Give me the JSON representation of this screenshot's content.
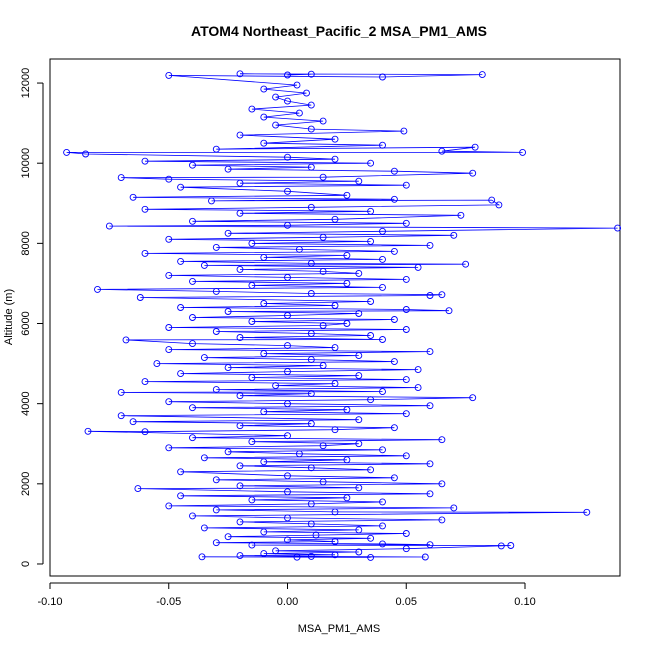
{
  "chart_data": {
    "type": "scatter",
    "title": "ATOM4 Northeast_Pacific_2 MSA_PM1_AMS",
    "xlabel": "MSA_PM1_AMS",
    "ylabel": "Altitude (m)",
    "xlim": [
      -0.1,
      0.14
    ],
    "ylim": [
      -300,
      12600
    ],
    "x_ticks": [
      -0.1,
      -0.05,
      0.0,
      0.05,
      0.1
    ],
    "x_tick_labels": [
      "-0.10",
      "-0.05",
      "0.00",
      "0.05",
      "0.10"
    ],
    "y_ticks": [
      0,
      2000,
      4000,
      6000,
      8000,
      10000,
      12000
    ],
    "y_tick_labels": [
      "0",
      "2000",
      "4000",
      "6000",
      "8000",
      "10000",
      "12000"
    ],
    "grid": false,
    "legend": "none",
    "series": [
      {
        "values": [
          [
            0.004,
            170
          ],
          [
            0.035,
            165
          ],
          [
            -0.036,
            180
          ],
          [
            0.058,
            175
          ],
          [
            0.01,
            190
          ],
          [
            -0.02,
            210
          ],
          [
            0.02,
            230
          ],
          [
            -0.01,
            260
          ],
          [
            0.03,
            300
          ],
          [
            -0.005,
            330
          ],
          [
            0.05,
            380
          ],
          [
            0.09,
            450
          ],
          [
            0.094,
            460
          ],
          [
            -0.015,
            470
          ],
          [
            0.06,
            480
          ],
          [
            0.04,
            500
          ],
          [
            -0.03,
            530
          ],
          [
            0.02,
            560
          ],
          [
            0.0,
            600
          ],
          [
            0.035,
            640
          ],
          [
            -0.025,
            680
          ],
          [
            0.012,
            720
          ],
          [
            0.05,
            760
          ],
          [
            -0.01,
            800
          ],
          [
            0.03,
            850
          ],
          [
            -0.035,
            900
          ],
          [
            0.04,
            950
          ],
          [
            0.01,
            1000
          ],
          [
            -0.02,
            1050
          ],
          [
            0.065,
            1100
          ],
          [
            0.0,
            1150
          ],
          [
            -0.04,
            1200
          ],
          [
            0.126,
            1290
          ],
          [
            0.02,
            1300
          ],
          [
            -0.03,
            1350
          ],
          [
            0.07,
            1400
          ],
          [
            -0.05,
            1450
          ],
          [
            0.01,
            1500
          ],
          [
            0.04,
            1550
          ],
          [
            -0.015,
            1600
          ],
          [
            0.025,
            1650
          ],
          [
            -0.045,
            1700
          ],
          [
            0.06,
            1750
          ],
          [
            0.0,
            1800
          ],
          [
            -0.063,
            1880
          ],
          [
            0.03,
            1900
          ],
          [
            -0.02,
            1950
          ],
          [
            0.065,
            2000
          ],
          [
            0.015,
            2050
          ],
          [
            -0.03,
            2100
          ],
          [
            0.045,
            2150
          ],
          [
            0.0,
            2200
          ],
          [
            -0.045,
            2300
          ],
          [
            0.035,
            2350
          ],
          [
            0.01,
            2400
          ],
          [
            -0.02,
            2450
          ],
          [
            0.06,
            2500
          ],
          [
            -0.01,
            2550
          ],
          [
            0.025,
            2600
          ],
          [
            -0.035,
            2650
          ],
          [
            0.05,
            2700
          ],
          [
            0.005,
            2750
          ],
          [
            -0.025,
            2800
          ],
          [
            0.04,
            2850
          ],
          [
            -0.05,
            2900
          ],
          [
            0.015,
            2950
          ],
          [
            0.03,
            3000
          ],
          [
            -0.015,
            3050
          ],
          [
            0.065,
            3100
          ],
          [
            -0.04,
            3150
          ],
          [
            0.0,
            3200
          ],
          [
            -0.084,
            3310
          ],
          [
            -0.06,
            3300
          ],
          [
            0.02,
            3350
          ],
          [
            0.045,
            3400
          ],
          [
            -0.02,
            3450
          ],
          [
            0.01,
            3500
          ],
          [
            -0.065,
            3550
          ],
          [
            0.03,
            3600
          ],
          [
            -0.07,
            3700
          ],
          [
            0.05,
            3750
          ],
          [
            -0.01,
            3800
          ],
          [
            0.025,
            3850
          ],
          [
            -0.04,
            3900
          ],
          [
            0.06,
            3950
          ],
          [
            0.0,
            4000
          ],
          [
            -0.05,
            4050
          ],
          [
            0.035,
            4100
          ],
          [
            0.078,
            4150
          ],
          [
            -0.02,
            4200
          ],
          [
            0.01,
            4250
          ],
          [
            -0.07,
            4280
          ],
          [
            0.04,
            4300
          ],
          [
            -0.03,
            4350
          ],
          [
            0.055,
            4400
          ],
          [
            -0.005,
            4450
          ],
          [
            0.02,
            4500
          ],
          [
            -0.06,
            4550
          ],
          [
            0.05,
            4600
          ],
          [
            -0.015,
            4650
          ],
          [
            0.03,
            4700
          ],
          [
            -0.045,
            4750
          ],
          [
            0.0,
            4800
          ],
          [
            0.055,
            4850
          ],
          [
            -0.025,
            4900
          ],
          [
            0.015,
            4950
          ],
          [
            -0.055,
            5000
          ],
          [
            0.045,
            5050
          ],
          [
            0.01,
            5100
          ],
          [
            -0.035,
            5150
          ],
          [
            0.03,
            5200
          ],
          [
            -0.01,
            5250
          ],
          [
            0.06,
            5300
          ],
          [
            -0.05,
            5350
          ],
          [
            0.02,
            5400
          ],
          [
            0.0,
            5450
          ],
          [
            -0.04,
            5500
          ],
          [
            -0.068,
            5590
          ],
          [
            0.04,
            5600
          ],
          [
            -0.02,
            5650
          ],
          [
            0.035,
            5700
          ],
          [
            0.01,
            5750
          ],
          [
            -0.03,
            5800
          ],
          [
            0.05,
            5850
          ],
          [
            -0.05,
            5900
          ],
          [
            0.015,
            5950
          ],
          [
            0.025,
            6000
          ],
          [
            -0.015,
            6050
          ],
          [
            0.045,
            6100
          ],
          [
            -0.04,
            6150
          ],
          [
            0.0,
            6200
          ],
          [
            0.03,
            6250
          ],
          [
            -0.025,
            6300
          ],
          [
            0.068,
            6320
          ],
          [
            0.05,
            6350
          ],
          [
            -0.045,
            6400
          ],
          [
            0.02,
            6450
          ],
          [
            -0.01,
            6500
          ],
          [
            0.035,
            6550
          ],
          [
            -0.062,
            6650
          ],
          [
            0.06,
            6700
          ],
          [
            0.065,
            6720
          ],
          [
            0.01,
            6750
          ],
          [
            -0.03,
            6800
          ],
          [
            -0.08,
            6850
          ],
          [
            0.04,
            6900
          ],
          [
            -0.015,
            6950
          ],
          [
            0.025,
            7000
          ],
          [
            -0.04,
            7050
          ],
          [
            0.05,
            7100
          ],
          [
            0.0,
            7150
          ],
          [
            -0.05,
            7200
          ],
          [
            0.03,
            7250
          ],
          [
            0.015,
            7300
          ],
          [
            -0.02,
            7350
          ],
          [
            0.055,
            7400
          ],
          [
            -0.035,
            7450
          ],
          [
            0.075,
            7480
          ],
          [
            0.01,
            7500
          ],
          [
            -0.045,
            7550
          ],
          [
            0.04,
            7600
          ],
          [
            -0.01,
            7650
          ],
          [
            0.025,
            7700
          ],
          [
            -0.06,
            7750
          ],
          [
            0.045,
            7800
          ],
          [
            0.005,
            7850
          ],
          [
            -0.03,
            7900
          ],
          [
            0.06,
            7950
          ],
          [
            -0.015,
            8000
          ],
          [
            0.035,
            8050
          ],
          [
            -0.05,
            8100
          ],
          [
            0.015,
            8150
          ],
          [
            0.07,
            8200
          ],
          [
            -0.025,
            8250
          ],
          [
            0.04,
            8300
          ],
          [
            0.139,
            8380
          ],
          [
            -0.075,
            8430
          ],
          [
            0.0,
            8450
          ],
          [
            0.05,
            8500
          ],
          [
            -0.04,
            8550
          ],
          [
            0.02,
            8600
          ],
          [
            0.073,
            8700
          ],
          [
            -0.02,
            8750
          ],
          [
            0.035,
            8800
          ],
          [
            -0.06,
            8850
          ],
          [
            0.01,
            8900
          ],
          [
            0.089,
            8960
          ],
          [
            0.086,
            9080
          ],
          [
            -0.032,
            9060
          ],
          [
            0.045,
            9100
          ],
          [
            -0.065,
            9150
          ],
          [
            0.025,
            9200
          ],
          [
            0.0,
            9300
          ],
          [
            -0.045,
            9400
          ],
          [
            0.05,
            9450
          ],
          [
            -0.02,
            9500
          ],
          [
            0.03,
            9550
          ],
          [
            -0.05,
            9600
          ],
          [
            -0.07,
            9640
          ],
          [
            0.015,
            9650
          ],
          [
            0.078,
            9750
          ],
          [
            0.045,
            9800
          ],
          [
            -0.025,
            9850
          ],
          [
            0.01,
            9900
          ],
          [
            -0.04,
            9950
          ],
          [
            0.035,
            10000
          ],
          [
            -0.06,
            10050
          ],
          [
            0.02,
            10100
          ],
          [
            0.0,
            10150
          ],
          [
            -0.085,
            10230
          ],
          [
            -0.093,
            10270
          ],
          [
            0.099,
            10270
          ],
          [
            0.065,
            10300
          ],
          [
            0.079,
            10400
          ],
          [
            -0.03,
            10350
          ],
          [
            0.04,
            10450
          ],
          [
            -0.01,
            10500
          ],
          [
            0.02,
            10600
          ],
          [
            -0.02,
            10700
          ],
          [
            0.049,
            10800
          ],
          [
            0.01,
            10850
          ],
          [
            -0.005,
            10950
          ],
          [
            0.015,
            11050
          ],
          [
            -0.01,
            11150
          ],
          [
            0.005,
            11250
          ],
          [
            -0.015,
            11350
          ],
          [
            0.01,
            11450
          ],
          [
            0.0,
            11550
          ],
          [
            -0.005,
            11650
          ],
          [
            0.008,
            11750
          ],
          [
            -0.01,
            11850
          ],
          [
            0.004,
            11950
          ],
          [
            -0.05,
            12190
          ],
          [
            0.04,
            12150
          ],
          [
            0.082,
            12210
          ],
          [
            -0.02,
            12230
          ],
          [
            0.01,
            12220
          ],
          [
            0.0,
            12200
          ]
        ]
      }
    ]
  }
}
